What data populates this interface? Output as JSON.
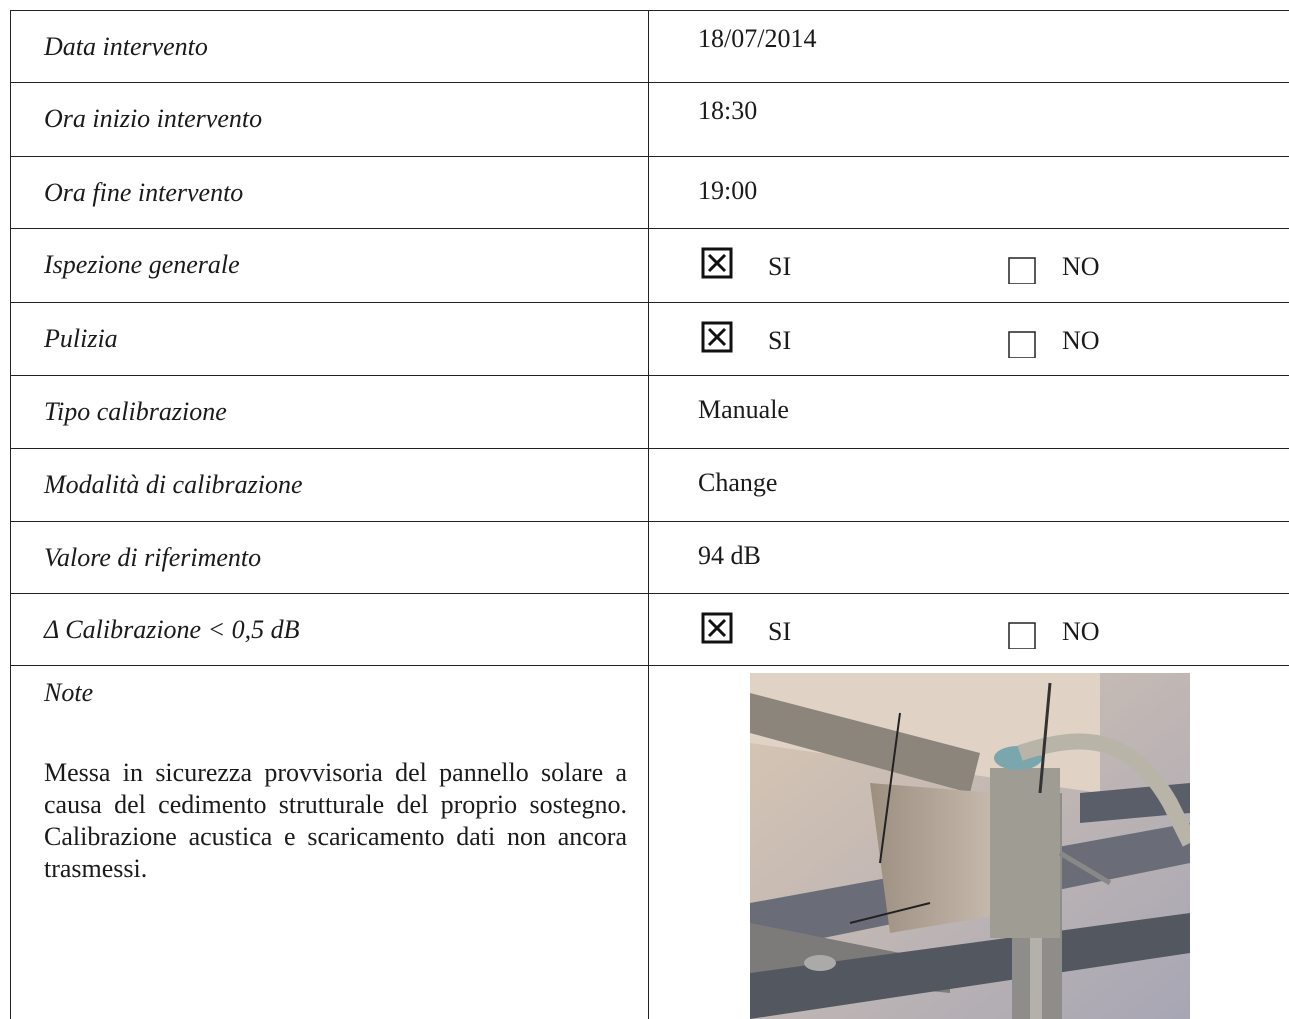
{
  "table": {
    "rows": [
      {
        "label": "Data intervento",
        "value": "18/07/2014"
      },
      {
        "label": "Ora inizio intervento",
        "value": "18:30"
      },
      {
        "label": "Ora fine intervento",
        "value": "19:00"
      },
      {
        "label": "Ispezione generale",
        "options": [
          {
            "text": "SI",
            "checked": true
          },
          {
            "text": "NO",
            "checked": false
          }
        ]
      },
      {
        "label": "Pulizia",
        "options": [
          {
            "text": "SI",
            "checked": true
          },
          {
            "text": "NO",
            "checked": false
          }
        ]
      },
      {
        "label": "Tipo calibrazione",
        "value": "Manuale"
      },
      {
        "label": "Modalità di calibrazione",
        "value": "Change"
      },
      {
        "label": "Valore di riferimento",
        "value": "94 dB"
      },
      {
        "label": "Δ Calibrazione < 0,5 dB",
        "options": [
          {
            "text": "SI",
            "checked": true
          },
          {
            "text": "NO",
            "checked": false
          }
        ]
      }
    ]
  },
  "notes": {
    "label": "Note",
    "text": "Messa in sicurezza provvisoria del pannello solare a causa del cedimento strutturale del proprio sostegno. Calibrazione acustica e scaricamento dati non ancora trasmessi."
  }
}
